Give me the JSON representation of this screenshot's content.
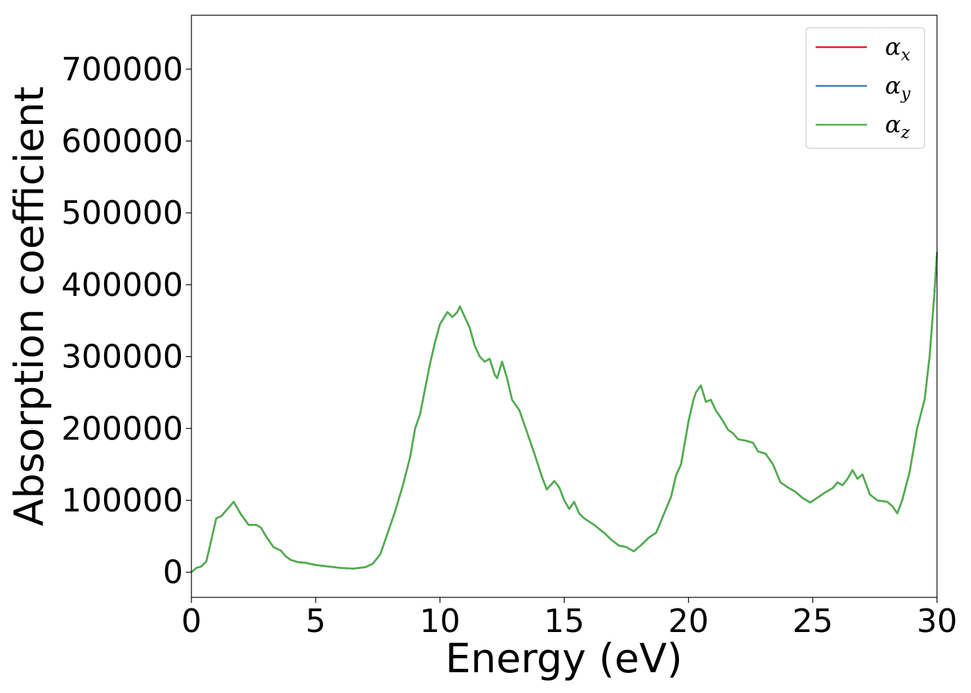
{
  "chart_data": {
    "type": "line",
    "title": "",
    "xlabel": "Energy (eV)",
    "ylabel": "Absorption coefficient",
    "xlim": [
      0,
      30
    ],
    "ylim": [
      -35000,
      775000
    ],
    "xticks": [
      0,
      5,
      10,
      15,
      20,
      25,
      30
    ],
    "xtick_labels": [
      "0",
      "5",
      "10",
      "15",
      "20",
      "25",
      "30"
    ],
    "yticks": [
      0,
      100000,
      200000,
      300000,
      400000,
      500000,
      600000,
      700000
    ],
    "ytick_labels": [
      "0",
      "100000",
      "200000",
      "300000",
      "400000",
      "500000",
      "600000",
      "700000"
    ],
    "grid": false,
    "legend_position": "top-right",
    "legend": [
      {
        "symbol": "α",
        "subscript": "x",
        "color": "#e41a1c"
      },
      {
        "symbol": "α",
        "subscript": "y",
        "color": "#377eb8"
      },
      {
        "symbol": "α",
        "subscript": "z",
        "color": "#4daf4a"
      }
    ],
    "x": [
      0,
      0.2,
      0.4,
      0.6,
      0.8,
      1.0,
      1.2,
      1.4,
      1.7,
      2.0,
      2.3,
      2.6,
      2.8,
      3.0,
      3.3,
      3.6,
      3.8,
      4.0,
      4.3,
      4.6,
      5.0,
      5.5,
      6.0,
      6.5,
      7.0,
      7.3,
      7.6,
      7.9,
      8.2,
      8.5,
      8.8,
      9.0,
      9.2,
      9.4,
      9.6,
      9.8,
      10.0,
      10.3,
      10.5,
      10.7,
      10.8,
      11.0,
      11.2,
      11.4,
      11.6,
      11.8,
      12.0,
      12.2,
      12.3,
      12.5,
      12.7,
      12.9,
      13.2,
      13.5,
      13.8,
      14.1,
      14.3,
      14.6,
      14.8,
      15.0,
      15.2,
      15.4,
      15.6,
      15.8,
      16.2,
      16.6,
      16.9,
      17.2,
      17.5,
      17.8,
      18.1,
      18.4,
      18.7,
      19.0,
      19.3,
      19.5,
      19.7,
      20.0,
      20.2,
      20.3,
      20.5,
      20.7,
      20.9,
      21.1,
      21.3,
      21.6,
      21.8,
      22.0,
      22.3,
      22.6,
      22.8,
      23.1,
      23.4,
      23.7,
      24.0,
      24.3,
      24.6,
      24.9,
      25.2,
      25.5,
      25.8,
      26.0,
      26.2,
      26.4,
      26.6,
      26.8,
      27.0,
      27.3,
      27.6,
      28.0,
      28.2,
      28.4,
      28.6,
      28.9,
      29.2,
      29.5,
      29.7,
      29.9,
      30.0
    ],
    "series": [
      {
        "name": "",
        "color": "#e41a1c",
        "values": [
          0,
          6000,
          8000,
          15000,
          45000,
          75000,
          78000,
          86000,
          98000,
          80000,
          66000,
          66000,
          62000,
          50000,
          35000,
          30000,
          22000,
          17000,
          14000,
          13000,
          10000,
          8000,
          6000,
          5000,
          7000,
          12000,
          25000,
          55000,
          85000,
          120000,
          160000,
          200000,
          220000,
          255000,
          290000,
          320000,
          345000,
          362000,
          355000,
          362000,
          370000,
          355000,
          340000,
          315000,
          300000,
          293000,
          297000,
          275000,
          270000,
          293000,
          270000,
          240000,
          225000,
          195000,
          165000,
          133000,
          115000,
          127000,
          118000,
          100000,
          88000,
          98000,
          82000,
          75000,
          66000,
          55000,
          45000,
          37000,
          35000,
          29000,
          38000,
          48000,
          55000,
          80000,
          105000,
          135000,
          150000,
          210000,
          240000,
          250000,
          260000,
          237000,
          240000,
          225000,
          215000,
          198000,
          193000,
          185000,
          183000,
          180000,
          168000,
          165000,
          150000,
          125000,
          118000,
          112000,
          103000,
          97000,
          104000,
          111000,
          117000,
          125000,
          121000,
          130000,
          142000,
          130000,
          136000,
          108000,
          100000,
          98000,
          92000,
          82000,
          100000,
          140000,
          200000,
          240000,
          300000,
          390000,
          445000
        ]
      },
      {
        "name": "",
        "color": "#377eb8",
        "values": [
          0,
          6000,
          8000,
          15000,
          45000,
          75000,
          78000,
          86000,
          98000,
          80000,
          66000,
          66000,
          62000,
          50000,
          35000,
          30000,
          22000,
          17000,
          14000,
          13000,
          10000,
          8000,
          6000,
          5000,
          7000,
          12000,
          25000,
          55000,
          85000,
          120000,
          160000,
          200000,
          220000,
          255000,
          290000,
          320000,
          345000,
          362000,
          355000,
          362000,
          370000,
          355000,
          340000,
          315000,
          300000,
          293000,
          297000,
          275000,
          270000,
          293000,
          270000,
          240000,
          225000,
          195000,
          165000,
          133000,
          115000,
          127000,
          118000,
          100000,
          88000,
          98000,
          82000,
          75000,
          66000,
          55000,
          45000,
          37000,
          35000,
          29000,
          38000,
          48000,
          55000,
          80000,
          105000,
          135000,
          150000,
          210000,
          240000,
          250000,
          260000,
          237000,
          240000,
          225000,
          215000,
          198000,
          193000,
          185000,
          183000,
          180000,
          168000,
          165000,
          150000,
          125000,
          118000,
          112000,
          103000,
          97000,
          104000,
          111000,
          117000,
          125000,
          121000,
          130000,
          142000,
          130000,
          136000,
          108000,
          100000,
          98000,
          92000,
          82000,
          100000,
          140000,
          200000,
          240000,
          300000,
          390000,
          445000
        ]
      },
      {
        "name": "",
        "color": "#4daf4a",
        "values": [
          0,
          6000,
          8000,
          15000,
          45000,
          75000,
          78000,
          86000,
          98000,
          80000,
          66000,
          66000,
          62000,
          50000,
          35000,
          30000,
          22000,
          17000,
          14000,
          13000,
          10000,
          8000,
          6000,
          5000,
          7000,
          12000,
          25000,
          55000,
          85000,
          120000,
          160000,
          200000,
          220000,
          255000,
          290000,
          320000,
          345000,
          362000,
          355000,
          362000,
          370000,
          355000,
          340000,
          315000,
          300000,
          293000,
          297000,
          275000,
          270000,
          293000,
          270000,
          240000,
          225000,
          195000,
          165000,
          133000,
          115000,
          127000,
          118000,
          100000,
          88000,
          98000,
          82000,
          75000,
          66000,
          55000,
          45000,
          37000,
          35000,
          29000,
          38000,
          48000,
          55000,
          80000,
          105000,
          135000,
          150000,
          210000,
          240000,
          250000,
          260000,
          237000,
          240000,
          225000,
          215000,
          198000,
          193000,
          185000,
          183000,
          180000,
          168000,
          165000,
          150000,
          125000,
          118000,
          112000,
          103000,
          97000,
          104000,
          111000,
          117000,
          125000,
          121000,
          130000,
          142000,
          130000,
          136000,
          108000,
          100000,
          98000,
          92000,
          82000,
          100000,
          140000,
          200000,
          240000,
          300000,
          390000,
          445000
        ]
      }
    ]
  }
}
